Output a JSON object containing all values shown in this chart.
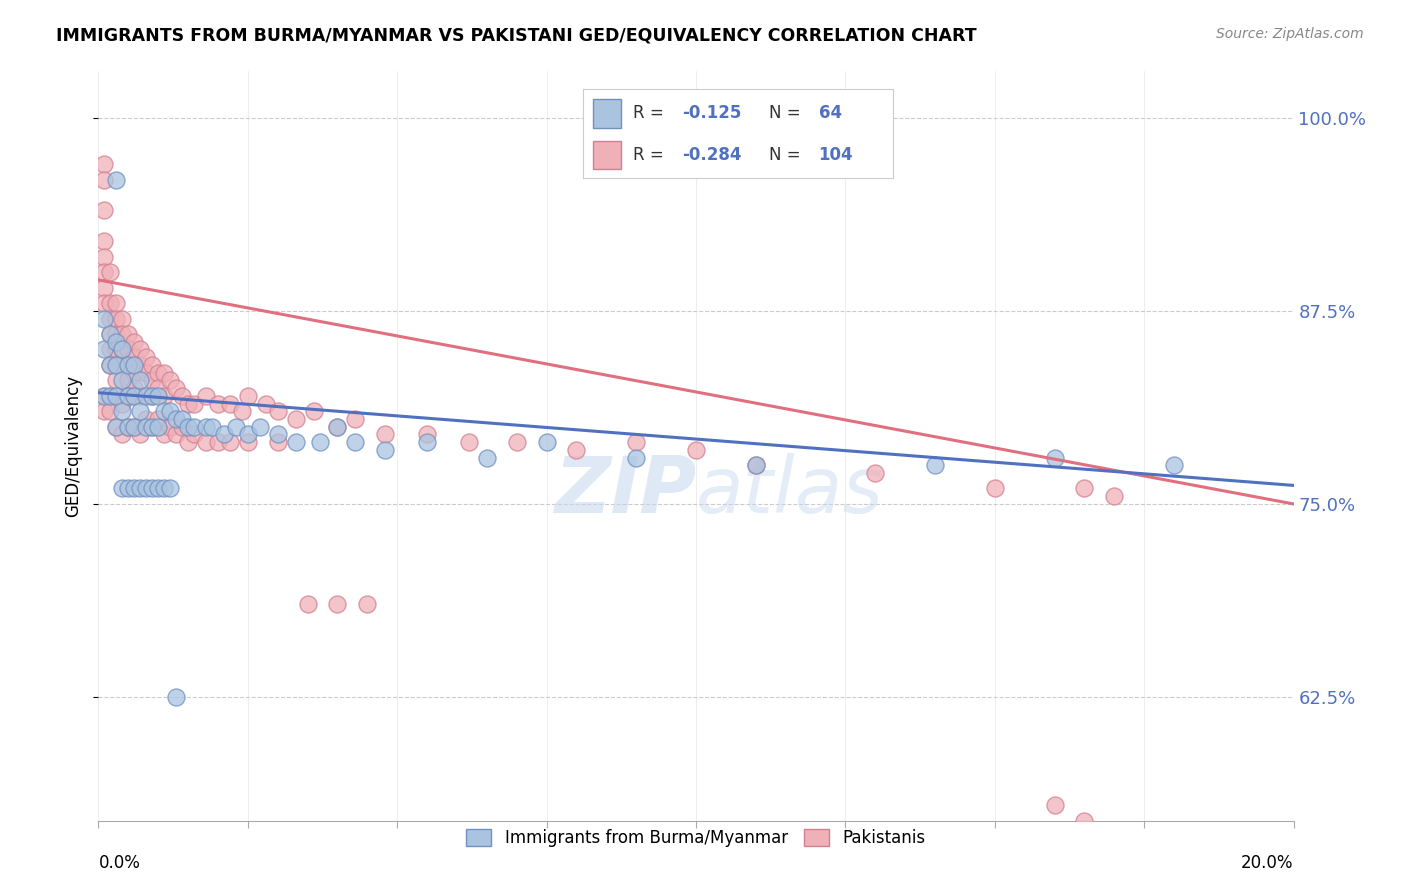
{
  "title": "IMMIGRANTS FROM BURMA/MYANMAR VS PAKISTANI GED/EQUIVALENCY CORRELATION CHART",
  "source": "Source: ZipAtlas.com",
  "ylabel": "GED/Equivalency",
  "ytick_vals": [
    0.625,
    0.75,
    0.875,
    1.0
  ],
  "ytick_labels": [
    "62.5%",
    "75.0%",
    "87.5%",
    "100.0%"
  ],
  "xmin": 0.0,
  "xmax": 0.2,
  "ymin": 0.545,
  "ymax": 1.03,
  "legend_r_blue": "-0.125",
  "legend_n_blue": "64",
  "legend_r_pink": "-0.284",
  "legend_n_pink": "104",
  "color_blue_fill": "#aac4e0",
  "color_blue_edge": "#7090c0",
  "color_pink_fill": "#f0b0b8",
  "color_pink_edge": "#d08090",
  "color_blue_line": "#5070c0",
  "color_pink_line": "#e07080",
  "watermark_zip": "ZIP",
  "watermark_atlas": "atlas",
  "blue_x": [
    0.001,
    0.001,
    0.001,
    0.002,
    0.002,
    0.002,
    0.003,
    0.003,
    0.003,
    0.003,
    0.004,
    0.004,
    0.004,
    0.005,
    0.005,
    0.005,
    0.006,
    0.006,
    0.006,
    0.007,
    0.007,
    0.008,
    0.008,
    0.009,
    0.009,
    0.01,
    0.01,
    0.011,
    0.012,
    0.013,
    0.014,
    0.015,
    0.016,
    0.018,
    0.019,
    0.021,
    0.023,
    0.025,
    0.027,
    0.03,
    0.033,
    0.037,
    0.04,
    0.043,
    0.048,
    0.055,
    0.065,
    0.075,
    0.09,
    0.11,
    0.14,
    0.16,
    0.18,
    0.003,
    0.004,
    0.005,
    0.006,
    0.007,
    0.008,
    0.009,
    0.01,
    0.011,
    0.012,
    0.013
  ],
  "blue_y": [
    0.87,
    0.85,
    0.82,
    0.86,
    0.84,
    0.82,
    0.855,
    0.84,
    0.82,
    0.8,
    0.85,
    0.83,
    0.81,
    0.84,
    0.82,
    0.8,
    0.84,
    0.82,
    0.8,
    0.83,
    0.81,
    0.82,
    0.8,
    0.82,
    0.8,
    0.82,
    0.8,
    0.81,
    0.81,
    0.805,
    0.805,
    0.8,
    0.8,
    0.8,
    0.8,
    0.795,
    0.8,
    0.795,
    0.8,
    0.795,
    0.79,
    0.79,
    0.8,
    0.79,
    0.785,
    0.79,
    0.78,
    0.79,
    0.78,
    0.775,
    0.775,
    0.78,
    0.775,
    0.96,
    0.76,
    0.76,
    0.76,
    0.76,
    0.76,
    0.76,
    0.76,
    0.76,
    0.76,
    0.625
  ],
  "pink_x": [
    0.001,
    0.001,
    0.001,
    0.001,
    0.001,
    0.001,
    0.001,
    0.001,
    0.002,
    0.002,
    0.002,
    0.002,
    0.002,
    0.002,
    0.003,
    0.003,
    0.003,
    0.003,
    0.003,
    0.003,
    0.004,
    0.004,
    0.004,
    0.004,
    0.005,
    0.005,
    0.005,
    0.005,
    0.006,
    0.006,
    0.006,
    0.006,
    0.007,
    0.007,
    0.008,
    0.008,
    0.009,
    0.009,
    0.009,
    0.01,
    0.01,
    0.011,
    0.011,
    0.012,
    0.013,
    0.014,
    0.015,
    0.016,
    0.018,
    0.02,
    0.022,
    0.024,
    0.025,
    0.028,
    0.03,
    0.033,
    0.036,
    0.04,
    0.043,
    0.048,
    0.055,
    0.062,
    0.07,
    0.08,
    0.09,
    0.1,
    0.11,
    0.13,
    0.15,
    0.165,
    0.17,
    0.001,
    0.001,
    0.002,
    0.002,
    0.003,
    0.003,
    0.004,
    0.004,
    0.005,
    0.005,
    0.006,
    0.006,
    0.007,
    0.007,
    0.008,
    0.009,
    0.01,
    0.011,
    0.012,
    0.013,
    0.014,
    0.015,
    0.016,
    0.018,
    0.02,
    0.022,
    0.025,
    0.03,
    0.035,
    0.04,
    0.045,
    0.16,
    0.165
  ],
  "pink_y": [
    0.97,
    0.96,
    0.94,
    0.92,
    0.91,
    0.9,
    0.89,
    0.88,
    0.9,
    0.88,
    0.87,
    0.86,
    0.85,
    0.84,
    0.88,
    0.87,
    0.86,
    0.85,
    0.84,
    0.83,
    0.87,
    0.86,
    0.85,
    0.84,
    0.86,
    0.85,
    0.84,
    0.83,
    0.855,
    0.845,
    0.835,
    0.825,
    0.85,
    0.84,
    0.845,
    0.835,
    0.84,
    0.83,
    0.82,
    0.835,
    0.825,
    0.835,
    0.82,
    0.83,
    0.825,
    0.82,
    0.815,
    0.815,
    0.82,
    0.815,
    0.815,
    0.81,
    0.82,
    0.815,
    0.81,
    0.805,
    0.81,
    0.8,
    0.805,
    0.795,
    0.795,
    0.79,
    0.79,
    0.785,
    0.79,
    0.785,
    0.775,
    0.77,
    0.76,
    0.76,
    0.755,
    0.82,
    0.81,
    0.82,
    0.81,
    0.82,
    0.8,
    0.815,
    0.795,
    0.82,
    0.8,
    0.82,
    0.8,
    0.82,
    0.795,
    0.805,
    0.8,
    0.805,
    0.795,
    0.8,
    0.795,
    0.8,
    0.79,
    0.795,
    0.79,
    0.79,
    0.79,
    0.79,
    0.79,
    0.685,
    0.685,
    0.685,
    0.555,
    0.545
  ]
}
